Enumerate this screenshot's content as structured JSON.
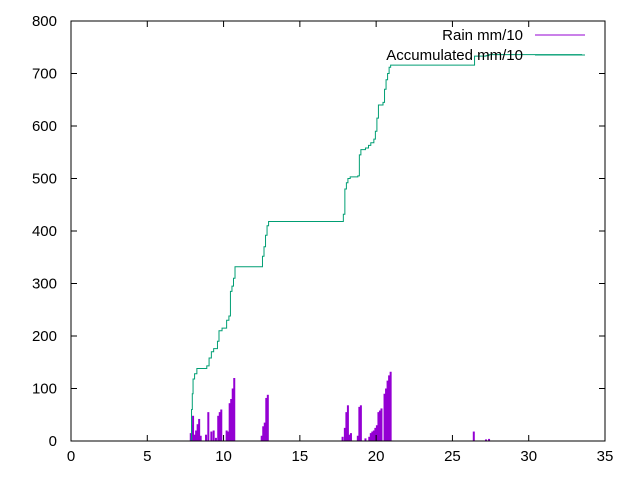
{
  "chart_data": {
    "type": "line",
    "title": "",
    "xlabel": "",
    "ylabel": "",
    "xlim": [
      0,
      35
    ],
    "ylim": [
      0,
      800
    ],
    "xticks": [
      0,
      5,
      10,
      15,
      20,
      25,
      30,
      35
    ],
    "yticks": [
      0,
      100,
      200,
      300,
      400,
      500,
      600,
      700,
      800
    ],
    "grid": false,
    "legend_position": "top-right",
    "series": [
      {
        "name": "Rain mm/10",
        "style": "impulses",
        "color": "#9400d3",
        "points": [
          [
            7.85,
            15
          ],
          [
            7.95,
            30
          ],
          [
            8.0,
            48
          ],
          [
            8.1,
            12
          ],
          [
            8.2,
            20
          ],
          [
            8.3,
            32
          ],
          [
            8.4,
            42
          ],
          [
            8.5,
            10
          ],
          [
            8.85,
            12
          ],
          [
            9.0,
            55
          ],
          [
            9.2,
            18
          ],
          [
            9.35,
            20
          ],
          [
            9.5,
            6
          ],
          [
            9.65,
            48
          ],
          [
            9.75,
            55
          ],
          [
            9.85,
            60
          ],
          [
            10.2,
            20
          ],
          [
            10.3,
            18
          ],
          [
            10.4,
            72
          ],
          [
            10.5,
            80
          ],
          [
            10.6,
            100
          ],
          [
            10.7,
            120
          ],
          [
            12.5,
            10
          ],
          [
            12.6,
            28
          ],
          [
            12.7,
            35
          ],
          [
            12.8,
            82
          ],
          [
            12.9,
            88
          ],
          [
            17.8,
            8
          ],
          [
            17.95,
            25
          ],
          [
            18.05,
            55
          ],
          [
            18.15,
            68
          ],
          [
            18.25,
            12
          ],
          [
            18.35,
            15
          ],
          [
            18.8,
            10
          ],
          [
            18.9,
            65
          ],
          [
            19.0,
            68
          ],
          [
            19.3,
            5
          ],
          [
            19.55,
            8
          ],
          [
            19.65,
            15
          ],
          [
            19.75,
            18
          ],
          [
            19.85,
            20
          ],
          [
            19.95,
            25
          ],
          [
            20.05,
            30
          ],
          [
            20.15,
            55
          ],
          [
            20.25,
            58
          ],
          [
            20.35,
            62
          ],
          [
            20.55,
            90
          ],
          [
            20.65,
            100
          ],
          [
            20.75,
            115
          ],
          [
            20.85,
            125
          ],
          [
            20.95,
            132
          ],
          [
            26.4,
            18
          ],
          [
            27.2,
            3
          ],
          [
            27.4,
            4
          ]
        ]
      },
      {
        "name": "Accumulated mm/10",
        "style": "steps",
        "color": "#009e73",
        "points": [
          [
            3.8,
            0
          ],
          [
            7.8,
            0
          ],
          [
            7.9,
            60
          ],
          [
            7.95,
            90
          ],
          [
            8.0,
            118
          ],
          [
            8.1,
            128
          ],
          [
            8.25,
            138
          ],
          [
            8.9,
            143
          ],
          [
            9.05,
            158
          ],
          [
            9.2,
            170
          ],
          [
            9.35,
            176
          ],
          [
            9.6,
            190
          ],
          [
            9.7,
            210
          ],
          [
            9.9,
            215
          ],
          [
            10.2,
            230
          ],
          [
            10.35,
            238
          ],
          [
            10.45,
            285
          ],
          [
            10.55,
            295
          ],
          [
            10.65,
            310
          ],
          [
            10.75,
            332
          ],
          [
            12.4,
            332
          ],
          [
            12.55,
            352
          ],
          [
            12.65,
            370
          ],
          [
            12.75,
            392
          ],
          [
            12.85,
            410
          ],
          [
            12.95,
            418
          ],
          [
            17.75,
            418
          ],
          [
            17.85,
            432
          ],
          [
            17.95,
            480
          ],
          [
            18.05,
            492
          ],
          [
            18.15,
            500
          ],
          [
            18.3,
            503
          ],
          [
            18.8,
            505
          ],
          [
            18.9,
            545
          ],
          [
            19.0,
            555
          ],
          [
            19.3,
            558
          ],
          [
            19.5,
            563
          ],
          [
            19.65,
            568
          ],
          [
            19.85,
            575
          ],
          [
            19.95,
            590
          ],
          [
            20.05,
            615
          ],
          [
            20.15,
            640
          ],
          [
            20.45,
            645
          ],
          [
            20.55,
            670
          ],
          [
            20.65,
            688
          ],
          [
            20.75,
            700
          ],
          [
            20.85,
            712
          ],
          [
            20.95,
            716
          ],
          [
            26.35,
            716
          ],
          [
            26.45,
            733
          ],
          [
            27.2,
            734
          ],
          [
            27.4,
            736
          ],
          [
            33.5,
            736
          ]
        ]
      }
    ]
  }
}
